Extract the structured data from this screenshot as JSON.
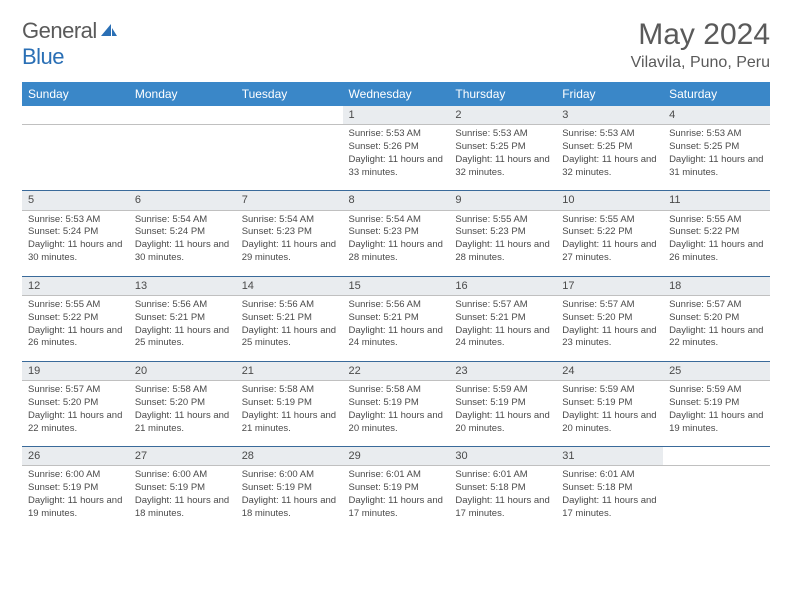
{
  "logo": {
    "text1": "General",
    "text2": "Blue"
  },
  "title": "May 2024",
  "location": "Vilavila, Puno, Peru",
  "colors": {
    "header_bg": "#3a87c8",
    "header_fg": "#ffffff",
    "daynum_bg": "#e9ecef",
    "row_border": "#3a6a9a",
    "text": "#4a4a4a",
    "logo_gray": "#5a5a5a",
    "logo_blue": "#2a6fb5"
  },
  "day_headers": [
    "Sunday",
    "Monday",
    "Tuesday",
    "Wednesday",
    "Thursday",
    "Friday",
    "Saturday"
  ],
  "weeks": [
    {
      "nums": [
        "",
        "",
        "",
        "1",
        "2",
        "3",
        "4"
      ],
      "cells": [
        {
          "empty": true
        },
        {
          "empty": true
        },
        {
          "empty": true
        },
        {
          "sunrise": "Sunrise: 5:53 AM",
          "sunset": "Sunset: 5:26 PM",
          "daylight": "Daylight: 11 hours and 33 minutes."
        },
        {
          "sunrise": "Sunrise: 5:53 AM",
          "sunset": "Sunset: 5:25 PM",
          "daylight": "Daylight: 11 hours and 32 minutes."
        },
        {
          "sunrise": "Sunrise: 5:53 AM",
          "sunset": "Sunset: 5:25 PM",
          "daylight": "Daylight: 11 hours and 32 minutes."
        },
        {
          "sunrise": "Sunrise: 5:53 AM",
          "sunset": "Sunset: 5:25 PM",
          "daylight": "Daylight: 11 hours and 31 minutes."
        }
      ]
    },
    {
      "nums": [
        "5",
        "6",
        "7",
        "8",
        "9",
        "10",
        "11"
      ],
      "cells": [
        {
          "sunrise": "Sunrise: 5:53 AM",
          "sunset": "Sunset: 5:24 PM",
          "daylight": "Daylight: 11 hours and 30 minutes."
        },
        {
          "sunrise": "Sunrise: 5:54 AM",
          "sunset": "Sunset: 5:24 PM",
          "daylight": "Daylight: 11 hours and 30 minutes."
        },
        {
          "sunrise": "Sunrise: 5:54 AM",
          "sunset": "Sunset: 5:23 PM",
          "daylight": "Daylight: 11 hours and 29 minutes."
        },
        {
          "sunrise": "Sunrise: 5:54 AM",
          "sunset": "Sunset: 5:23 PM",
          "daylight": "Daylight: 11 hours and 28 minutes."
        },
        {
          "sunrise": "Sunrise: 5:55 AM",
          "sunset": "Sunset: 5:23 PM",
          "daylight": "Daylight: 11 hours and 28 minutes."
        },
        {
          "sunrise": "Sunrise: 5:55 AM",
          "sunset": "Sunset: 5:22 PM",
          "daylight": "Daylight: 11 hours and 27 minutes."
        },
        {
          "sunrise": "Sunrise: 5:55 AM",
          "sunset": "Sunset: 5:22 PM",
          "daylight": "Daylight: 11 hours and 26 minutes."
        }
      ]
    },
    {
      "nums": [
        "12",
        "13",
        "14",
        "15",
        "16",
        "17",
        "18"
      ],
      "cells": [
        {
          "sunrise": "Sunrise: 5:55 AM",
          "sunset": "Sunset: 5:22 PM",
          "daylight": "Daylight: 11 hours and 26 minutes."
        },
        {
          "sunrise": "Sunrise: 5:56 AM",
          "sunset": "Sunset: 5:21 PM",
          "daylight": "Daylight: 11 hours and 25 minutes."
        },
        {
          "sunrise": "Sunrise: 5:56 AM",
          "sunset": "Sunset: 5:21 PM",
          "daylight": "Daylight: 11 hours and 25 minutes."
        },
        {
          "sunrise": "Sunrise: 5:56 AM",
          "sunset": "Sunset: 5:21 PM",
          "daylight": "Daylight: 11 hours and 24 minutes."
        },
        {
          "sunrise": "Sunrise: 5:57 AM",
          "sunset": "Sunset: 5:21 PM",
          "daylight": "Daylight: 11 hours and 24 minutes."
        },
        {
          "sunrise": "Sunrise: 5:57 AM",
          "sunset": "Sunset: 5:20 PM",
          "daylight": "Daylight: 11 hours and 23 minutes."
        },
        {
          "sunrise": "Sunrise: 5:57 AM",
          "sunset": "Sunset: 5:20 PM",
          "daylight": "Daylight: 11 hours and 22 minutes."
        }
      ]
    },
    {
      "nums": [
        "19",
        "20",
        "21",
        "22",
        "23",
        "24",
        "25"
      ],
      "cells": [
        {
          "sunrise": "Sunrise: 5:57 AM",
          "sunset": "Sunset: 5:20 PM",
          "daylight": "Daylight: 11 hours and 22 minutes."
        },
        {
          "sunrise": "Sunrise: 5:58 AM",
          "sunset": "Sunset: 5:20 PM",
          "daylight": "Daylight: 11 hours and 21 minutes."
        },
        {
          "sunrise": "Sunrise: 5:58 AM",
          "sunset": "Sunset: 5:19 PM",
          "daylight": "Daylight: 11 hours and 21 minutes."
        },
        {
          "sunrise": "Sunrise: 5:58 AM",
          "sunset": "Sunset: 5:19 PM",
          "daylight": "Daylight: 11 hours and 20 minutes."
        },
        {
          "sunrise": "Sunrise: 5:59 AM",
          "sunset": "Sunset: 5:19 PM",
          "daylight": "Daylight: 11 hours and 20 minutes."
        },
        {
          "sunrise": "Sunrise: 5:59 AM",
          "sunset": "Sunset: 5:19 PM",
          "daylight": "Daylight: 11 hours and 20 minutes."
        },
        {
          "sunrise": "Sunrise: 5:59 AM",
          "sunset": "Sunset: 5:19 PM",
          "daylight": "Daylight: 11 hours and 19 minutes."
        }
      ]
    },
    {
      "nums": [
        "26",
        "27",
        "28",
        "29",
        "30",
        "31",
        ""
      ],
      "cells": [
        {
          "sunrise": "Sunrise: 6:00 AM",
          "sunset": "Sunset: 5:19 PM",
          "daylight": "Daylight: 11 hours and 19 minutes."
        },
        {
          "sunrise": "Sunrise: 6:00 AM",
          "sunset": "Sunset: 5:19 PM",
          "daylight": "Daylight: 11 hours and 18 minutes."
        },
        {
          "sunrise": "Sunrise: 6:00 AM",
          "sunset": "Sunset: 5:19 PM",
          "daylight": "Daylight: 11 hours and 18 minutes."
        },
        {
          "sunrise": "Sunrise: 6:01 AM",
          "sunset": "Sunset: 5:19 PM",
          "daylight": "Daylight: 11 hours and 17 minutes."
        },
        {
          "sunrise": "Sunrise: 6:01 AM",
          "sunset": "Sunset: 5:18 PM",
          "daylight": "Daylight: 11 hours and 17 minutes."
        },
        {
          "sunrise": "Sunrise: 6:01 AM",
          "sunset": "Sunset: 5:18 PM",
          "daylight": "Daylight: 11 hours and 17 minutes."
        },
        {
          "empty": true
        }
      ]
    }
  ]
}
